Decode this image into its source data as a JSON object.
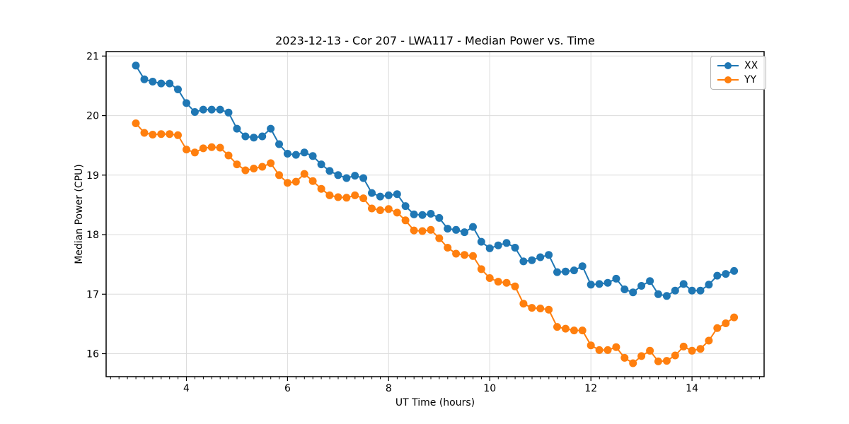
{
  "figure": {
    "title": "2023-12-13 - Cor 207 - LWA117 - Median Power vs. Time",
    "xlabel": "UT Time (hours)",
    "ylabel": "Median Power (CPU)"
  },
  "legend": {
    "position": "upper right",
    "entries": [
      "XX",
      "YY"
    ]
  },
  "colors": {
    "xx_series": "#1f77b4",
    "yy_series": "#ff7f0e",
    "grid": "#dcdcdc",
    "spine": "#000000",
    "tick_label": "#000000",
    "background": "#ffffff",
    "legend_border": "#b5b5b5"
  },
  "chart_data": {
    "type": "line",
    "title": "2023-12-13 - Cor 207 - LWA117 - Median Power vs. Time",
    "xlabel": "UT Time (hours)",
    "ylabel": "Median Power (CPU)",
    "grid": true,
    "legend_position": "upper right",
    "marker": "o",
    "xlim": [
      2.412,
      15.426
    ],
    "ylim": [
      15.614,
      21.075
    ],
    "xticks": [
      4,
      6,
      8,
      10,
      12,
      14
    ],
    "yticks": [
      16,
      17,
      18,
      19,
      20,
      21
    ],
    "x_minor_tick_interval": 0.1667,
    "x": [
      3.0,
      3.167,
      3.333,
      3.5,
      3.667,
      3.833,
      4.0,
      4.167,
      4.333,
      4.5,
      4.667,
      4.833,
      5.0,
      5.167,
      5.333,
      5.5,
      5.667,
      5.833,
      6.0,
      6.167,
      6.333,
      6.5,
      6.667,
      6.833,
      7.0,
      7.167,
      7.333,
      7.5,
      7.667,
      7.833,
      8.0,
      8.167,
      8.333,
      8.5,
      8.667,
      8.833,
      9.0,
      9.167,
      9.333,
      9.5,
      9.667,
      9.833,
      10.0,
      10.167,
      10.333,
      10.5,
      10.667,
      10.833,
      11.0,
      11.167,
      11.333,
      11.5,
      11.667,
      11.833,
      12.0,
      12.167,
      12.333,
      12.5,
      12.667,
      12.833,
      13.0,
      13.167,
      13.333,
      13.5,
      13.667,
      13.833,
      14.0,
      14.167,
      14.333,
      14.5,
      14.667,
      14.833
    ],
    "series": [
      {
        "name": "XX",
        "color": "#1f77b4",
        "values": [
          20.84,
          20.61,
          20.57,
          20.54,
          20.54,
          20.44,
          20.21,
          20.06,
          20.1,
          20.1,
          20.1,
          20.05,
          19.78,
          19.65,
          19.63,
          19.65,
          19.78,
          19.52,
          19.36,
          19.34,
          19.38,
          19.32,
          19.18,
          19.07,
          19.0,
          18.95,
          18.99,
          18.95,
          18.7,
          18.64,
          18.66,
          18.68,
          18.48,
          18.34,
          18.33,
          18.35,
          18.28,
          18.1,
          18.08,
          18.04,
          18.13,
          17.88,
          17.77,
          17.82,
          17.86,
          17.78,
          17.55,
          17.57,
          17.62,
          17.66,
          17.37,
          17.38,
          17.4,
          17.47,
          17.16,
          17.17,
          17.19,
          17.26,
          17.08,
          17.03,
          17.14,
          17.22,
          17.0,
          16.97,
          17.06,
          17.17,
          17.06,
          17.06,
          17.16,
          17.31,
          17.34,
          17.39
        ]
      },
      {
        "name": "YY",
        "color": "#ff7f0e",
        "values": [
          19.87,
          19.71,
          19.68,
          19.69,
          19.69,
          19.67,
          19.43,
          19.38,
          19.45,
          19.47,
          19.46,
          19.33,
          19.18,
          19.08,
          19.11,
          19.14,
          19.2,
          19.0,
          18.87,
          18.89,
          19.02,
          18.9,
          18.77,
          18.66,
          18.63,
          18.62,
          18.66,
          18.61,
          18.44,
          18.41,
          18.43,
          18.37,
          18.24,
          18.07,
          18.06,
          18.08,
          17.94,
          17.78,
          17.68,
          17.66,
          17.64,
          17.42,
          17.27,
          17.21,
          17.19,
          17.13,
          16.84,
          16.77,
          16.76,
          16.74,
          16.45,
          16.42,
          16.39,
          16.39,
          16.14,
          16.06,
          16.06,
          16.11,
          15.93,
          15.84,
          15.96,
          16.05,
          15.87,
          15.88,
          15.97,
          16.12,
          16.05,
          16.08,
          16.22,
          16.43,
          16.51,
          16.61
        ]
      }
    ]
  }
}
